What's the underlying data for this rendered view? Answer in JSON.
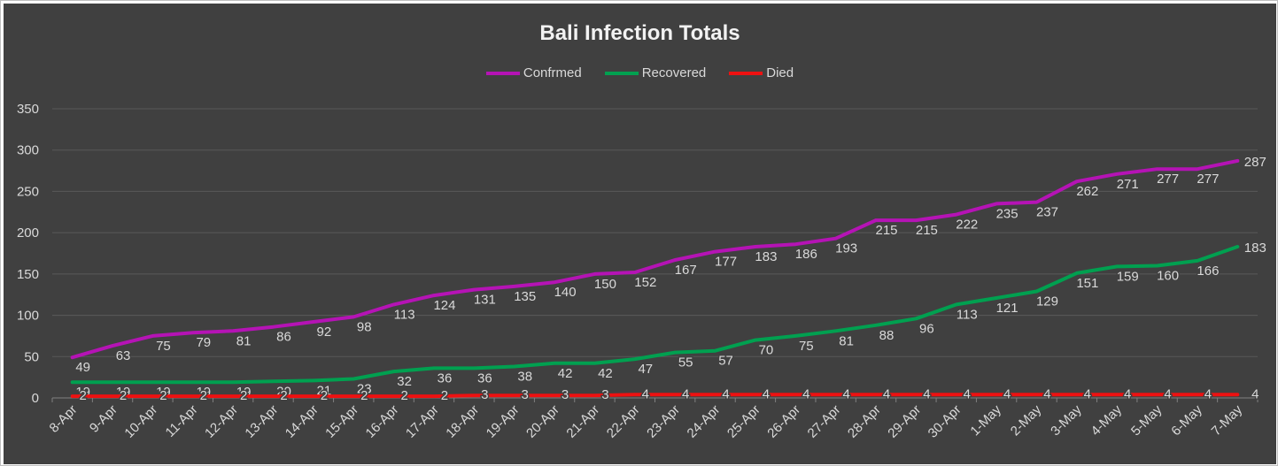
{
  "chart_data": {
    "type": "line",
    "title": "Bali Infection Totals",
    "xlabel": "",
    "ylabel": "",
    "ylim": [
      0,
      350
    ],
    "yticks": [
      0,
      50,
      100,
      150,
      200,
      250,
      300,
      350
    ],
    "grid": "horizontal",
    "legend_position": "top",
    "categories": [
      "8-Apr",
      "9-Apr",
      "10-Apr",
      "11-Apr",
      "12-Apr",
      "13-Apr",
      "14-Apr",
      "15-Apr",
      "16-Apr",
      "17-Apr",
      "18-Apr",
      "19-Apr",
      "20-Apr",
      "21-Apr",
      "22-Apr",
      "23-Apr",
      "24-Apr",
      "25-Apr",
      "26-Apr",
      "27-Apr",
      "28-Apr",
      "29-Apr",
      "30-Apr",
      "1-May",
      "2-May",
      "3-May",
      "4-May",
      "5-May",
      "6-May",
      "7-May"
    ],
    "series": [
      {
        "name": "Confrmed",
        "color": "#b513b5",
        "values": [
          49,
          63,
          75,
          79,
          81,
          86,
          92,
          98,
          113,
          124,
          131,
          135,
          140,
          150,
          152,
          167,
          177,
          183,
          186,
          193,
          215,
          215,
          222,
          235,
          237,
          262,
          271,
          277,
          277,
          287
        ]
      },
      {
        "name": "Recovered",
        "color": "#00a050",
        "values": [
          19,
          19,
          19,
          19,
          19,
          20,
          21,
          23,
          32,
          36,
          36,
          38,
          42,
          42,
          47,
          55,
          57,
          70,
          75,
          81,
          88,
          96,
          113,
          121,
          129,
          151,
          159,
          160,
          166,
          183
        ]
      },
      {
        "name": "Died",
        "color": "#ee1111",
        "values": [
          2,
          2,
          2,
          2,
          2,
          2,
          2,
          2,
          2,
          2,
          3,
          3,
          3,
          3,
          4,
          4,
          4,
          4,
          4,
          4,
          4,
          4,
          4,
          4,
          4,
          4,
          4,
          4,
          4,
          4
        ]
      }
    ]
  }
}
